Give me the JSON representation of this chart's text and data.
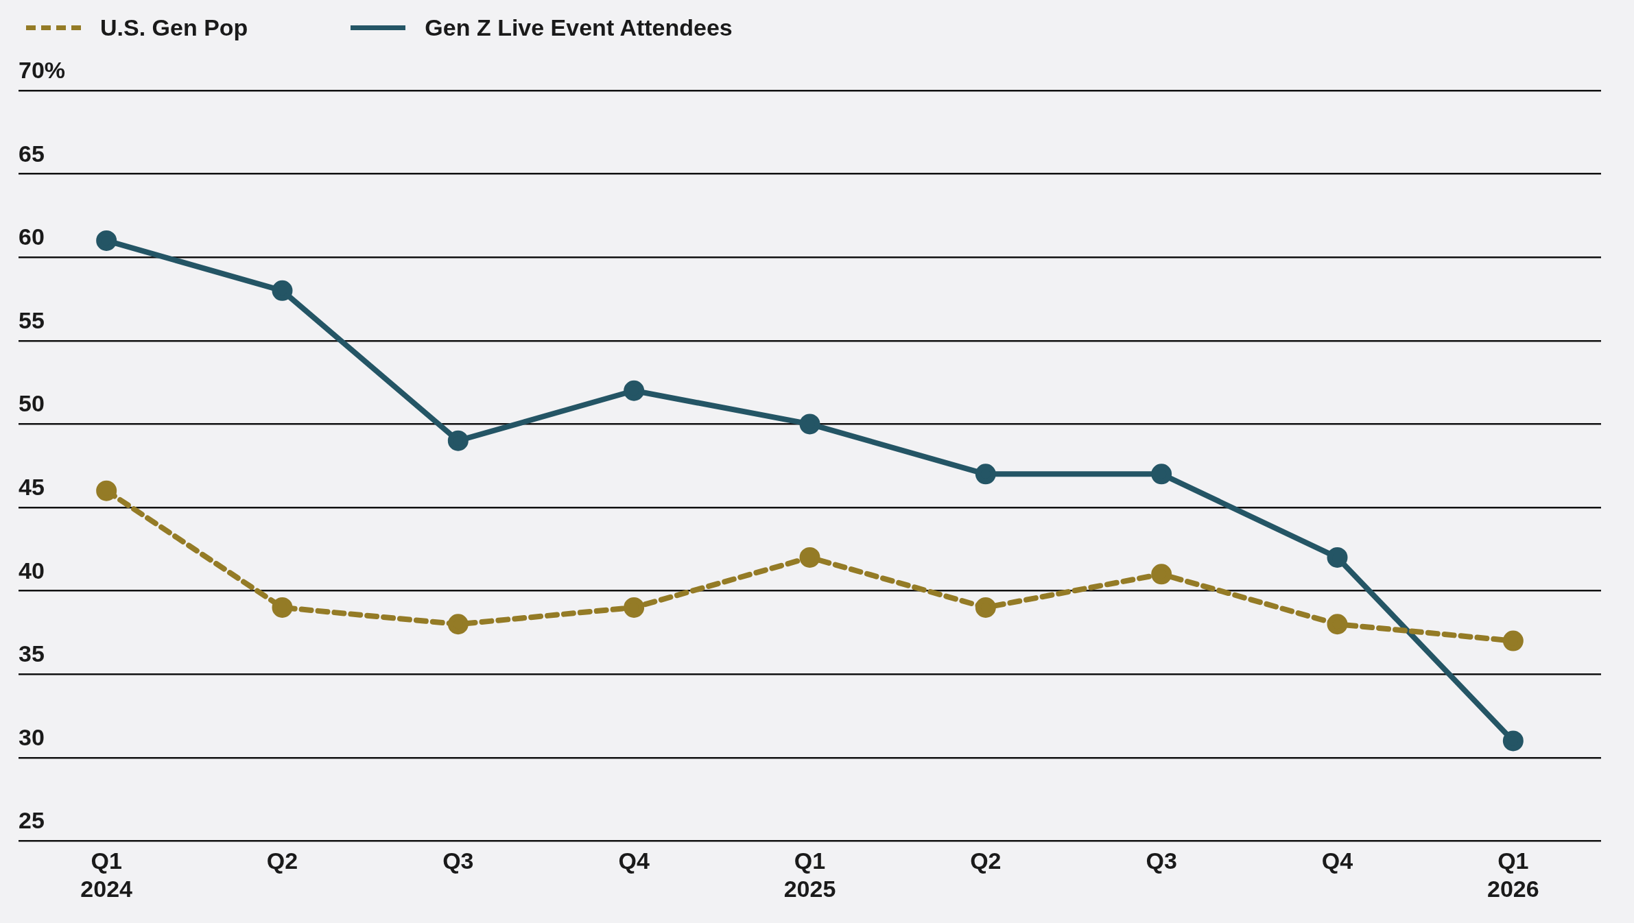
{
  "chart_data": {
    "type": "line",
    "categories": [
      "Q1\n2024",
      "Q2",
      "Q3",
      "Q4",
      "Q1\n2025",
      "Q2",
      "Q3",
      "Q4",
      "Q1\n2026"
    ],
    "series": [
      {
        "name": "U.S. Gen Pop",
        "color": "#947b26",
        "line_style": "dashed",
        "values": [
          46,
          39,
          38,
          39,
          42,
          39,
          41,
          38,
          37
        ]
      },
      {
        "name": "Gen Z Live Event Attendees",
        "color": "#245565",
        "line_style": "solid",
        "values": [
          61,
          58,
          49,
          52,
          50,
          47,
          47,
          42,
          31
        ]
      }
    ],
    "ylim": [
      25,
      70
    ],
    "yticks": [
      25,
      30,
      35,
      40,
      45,
      50,
      55,
      60,
      65,
      {
        "value": 70,
        "label": "70%"
      }
    ],
    "grid": "y",
    "marker": "circle",
    "legend": "top left"
  }
}
